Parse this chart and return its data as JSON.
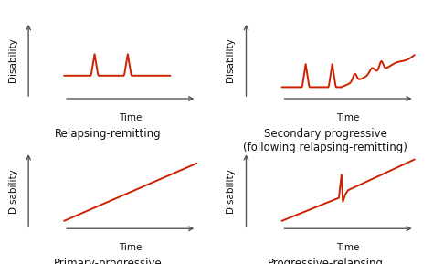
{
  "bg_color": "#ffffff",
  "line_color": "#cc2200",
  "axis_color": "#555555",
  "text_color": "#111111",
  "subtitle_fontsize": 8.5,
  "label_fontsize": 7.5,
  "panels": [
    {
      "title": "Relapsing-remitting",
      "type": "relapsing_remitting"
    },
    {
      "title": "Secondary progressive\n(following relapsing-remitting)",
      "type": "secondary_progressive"
    },
    {
      "title": "Primary-progressive",
      "type": "primary_progressive"
    },
    {
      "title": "Progressive-relapsing",
      "type": "progressive_relapsing"
    }
  ]
}
